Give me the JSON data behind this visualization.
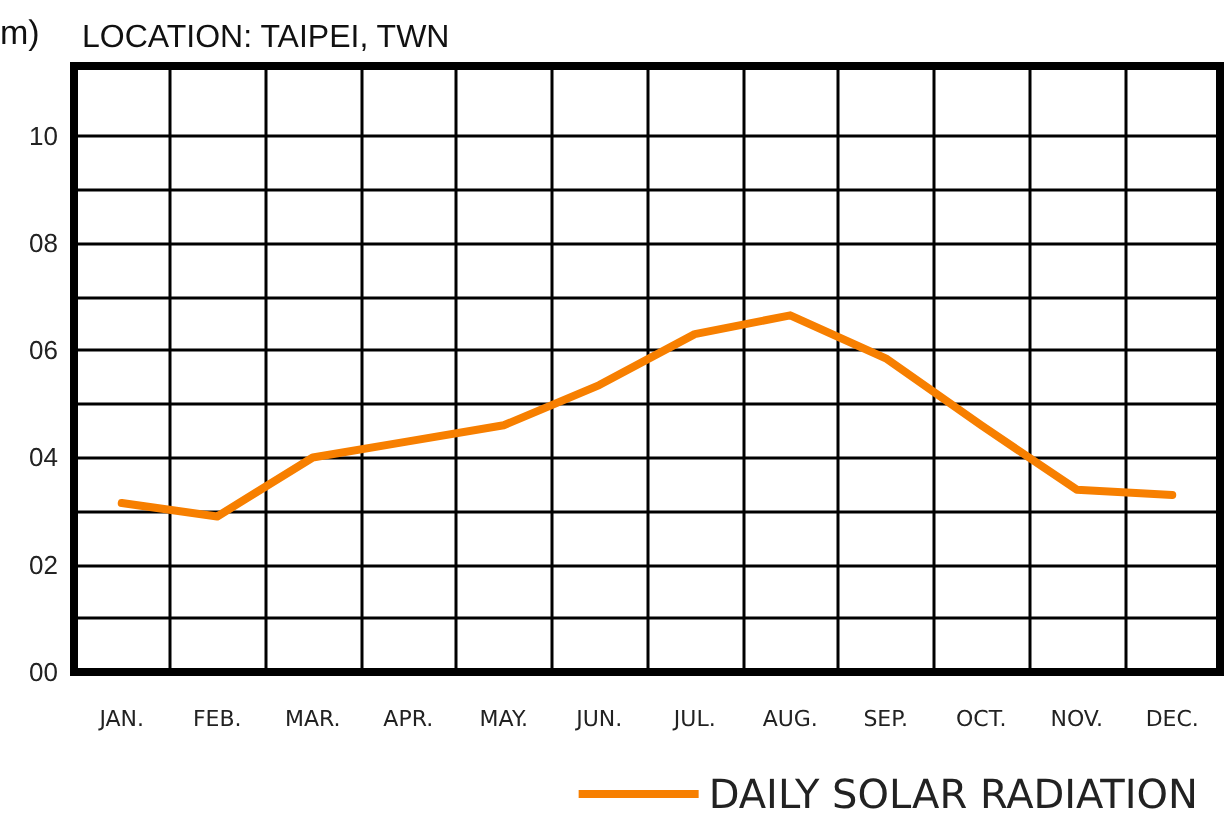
{
  "chart_data": {
    "type": "line",
    "title": "LOCATION: TAIPEI, TWN",
    "ylabel": "m)",
    "categories": [
      "JAN.",
      "FEB.",
      "MAR.",
      "APR.",
      "MAY.",
      "JUN.",
      "JUL.",
      "AUG.",
      "SEP.",
      "OCT.",
      "NOV.",
      "DEC."
    ],
    "series": [
      {
        "name": "DAILY SOLAR RADIATION",
        "color": "#f77f00",
        "values": [
          3.15,
          2.9,
          4.0,
          4.3,
          4.6,
          5.35,
          6.3,
          6.65,
          5.85,
          4.6,
          3.4,
          3.3
        ]
      }
    ],
    "ylim": [
      0,
      11.3
    ],
    "yticks": [
      {
        "value": 0,
        "label": "00"
      },
      {
        "value": 1,
        "label": null
      },
      {
        "value": 2,
        "label": "02"
      },
      {
        "value": 3,
        "label": null
      },
      {
        "value": 4,
        "label": "04"
      },
      {
        "value": 5,
        "label": null
      },
      {
        "value": 6,
        "label": "06"
      },
      {
        "value": 7,
        "label": null
      },
      {
        "value": 8,
        "label": "08"
      },
      {
        "value": 9,
        "label": null
      },
      {
        "value": 10,
        "label": "10"
      }
    ],
    "grid": true,
    "legend": "bottom right",
    "marker": "none",
    "line_style": "solid"
  }
}
